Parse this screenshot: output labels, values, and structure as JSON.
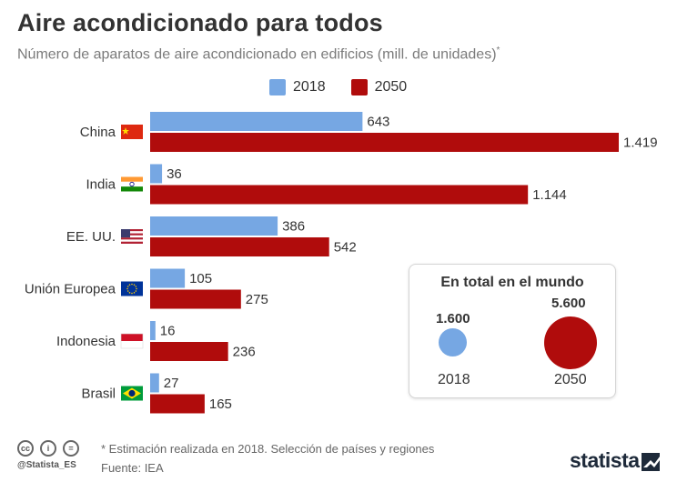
{
  "header": {
    "title": "Aire acondicionado para todos",
    "subtitle": "Número de aparatos de aire acondicionado en edificios (mill. de unidades)",
    "subtitle_mark": "*"
  },
  "colors": {
    "s2018": "#76a7e3",
    "s2050": "#b00c0c"
  },
  "chart_data": {
    "type": "bar",
    "orientation": "horizontal",
    "title": "Aire acondicionado para todos",
    "subtitle": "Número de aparatos de aire acondicionado en edificios (mill. de unidades)*",
    "categories": [
      "China",
      "India",
      "EE. UU.",
      "Unión Europea",
      "Indonesia",
      "Brasil"
    ],
    "series": [
      {
        "name": "2018",
        "values": [
          643,
          36,
          386,
          105,
          16,
          27
        ],
        "labels": [
          "643",
          "36",
          "386",
          "105",
          "16",
          "27"
        ]
      },
      {
        "name": "2050",
        "values": [
          1419,
          1144,
          542,
          275,
          236,
          165
        ],
        "labels": [
          "1.419",
          "1.144",
          "542",
          "275",
          "236",
          "165"
        ]
      }
    ],
    "legend": [
      "2018",
      "2050"
    ],
    "legend_position": "top",
    "grid": false,
    "xlim": [
      0,
      1419
    ]
  },
  "totals": {
    "title": "En total en el mundo",
    "items": [
      {
        "year": "2018",
        "value": 1600,
        "label": "1.600"
      },
      {
        "year": "2050",
        "value": 5600,
        "label": "5.600"
      }
    ]
  },
  "footer": {
    "cc_icons": [
      "cc",
      "i",
      "="
    ],
    "handle": "@Statista_ES",
    "footnote": "* Estimación realizada en 2018. Selección de países y regiones",
    "source": "Fuente: IEA",
    "brand": "statista"
  }
}
